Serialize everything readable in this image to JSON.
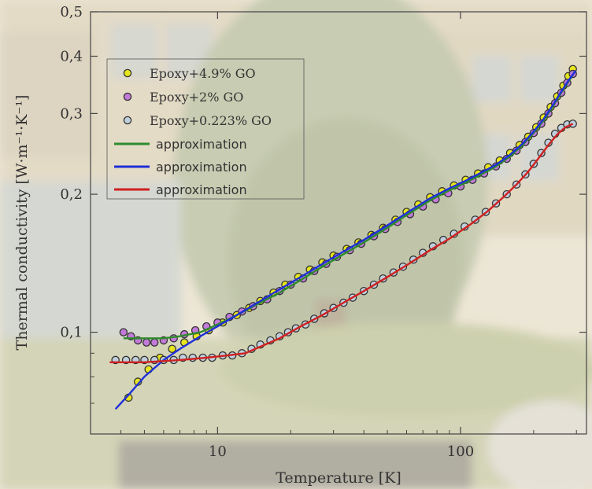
{
  "chart_data": {
    "type": "scatter",
    "xlabel": "Temperature [K]",
    "ylabel": "Thermal conductivity [W·m⁻¹·K⁻¹]",
    "x_scale": "log",
    "y_scale": "log",
    "xlim": [
      3.0,
      330
    ],
    "ylim": [
      0.06,
      0.5
    ],
    "grid": false,
    "legend_position": "top-left",
    "x_tick_labels": [
      "10",
      "100"
    ],
    "y_tick_labels": [
      "0,1",
      "0,2",
      "0,3",
      "0,4",
      "0,5"
    ],
    "series": [
      {
        "name": "Epoxy+4.9% GO",
        "marker_color": "#e7e51e",
        "points": [
          [
            4.3,
            0.072
          ],
          [
            4.7,
            0.078
          ],
          [
            5.2,
            0.083
          ],
          [
            5.8,
            0.088
          ],
          [
            6.5,
            0.092
          ],
          [
            7.3,
            0.095
          ],
          [
            8.2,
            0.098
          ],
          [
            9.2,
            0.101
          ],
          [
            10.5,
            0.105
          ],
          [
            12,
            0.109
          ],
          [
            13.5,
            0.113
          ],
          [
            15,
            0.117
          ],
          [
            17,
            0.122
          ],
          [
            19,
            0.127
          ],
          [
            21.5,
            0.132
          ],
          [
            24,
            0.137
          ],
          [
            27,
            0.142
          ],
          [
            30,
            0.147
          ],
          [
            34,
            0.152
          ],
          [
            38,
            0.157
          ],
          [
            43,
            0.163
          ],
          [
            48,
            0.169
          ],
          [
            54,
            0.176
          ],
          [
            60,
            0.183
          ],
          [
            67,
            0.19
          ],
          [
            75,
            0.197
          ],
          [
            84,
            0.203
          ],
          [
            94,
            0.209
          ],
          [
            105,
            0.215
          ],
          [
            118,
            0.222
          ],
          [
            130,
            0.229
          ],
          [
            145,
            0.237
          ],
          [
            160,
            0.246
          ],
          [
            175,
            0.256
          ],
          [
            190,
            0.267
          ],
          [
            205,
            0.28
          ],
          [
            220,
            0.294
          ],
          [
            235,
            0.31
          ],
          [
            250,
            0.327
          ],
          [
            265,
            0.345
          ],
          [
            278,
            0.362
          ],
          [
            290,
            0.375
          ]
        ]
      },
      {
        "name": "Epoxy+2% GO",
        "marker_color": "#c27ad8",
        "points": [
          [
            4.1,
            0.1
          ],
          [
            4.4,
            0.098
          ],
          [
            4.7,
            0.096
          ],
          [
            5.1,
            0.095
          ],
          [
            5.5,
            0.095
          ],
          [
            6.0,
            0.096
          ],
          [
            6.6,
            0.097
          ],
          [
            7.3,
            0.099
          ],
          [
            8.1,
            0.101
          ],
          [
            9,
            0.103
          ],
          [
            10,
            0.105
          ],
          [
            11.2,
            0.108
          ],
          [
            12.6,
            0.111
          ],
          [
            14,
            0.114
          ],
          [
            16,
            0.118
          ],
          [
            18,
            0.123
          ],
          [
            20,
            0.127
          ],
          [
            22.5,
            0.131
          ],
          [
            25,
            0.136
          ],
          [
            28,
            0.141
          ],
          [
            31,
            0.146
          ],
          [
            35,
            0.151
          ],
          [
            39,
            0.156
          ],
          [
            44,
            0.162
          ],
          [
            49,
            0.168
          ],
          [
            55,
            0.174
          ],
          [
            62,
            0.181
          ],
          [
            70,
            0.188
          ],
          [
            79,
            0.195
          ],
          [
            89,
            0.201
          ],
          [
            100,
            0.208
          ],
          [
            112,
            0.215
          ],
          [
            125,
            0.222
          ],
          [
            140,
            0.23
          ],
          [
            155,
            0.239
          ],
          [
            170,
            0.249
          ],
          [
            185,
            0.26
          ],
          [
            200,
            0.272
          ],
          [
            215,
            0.285
          ],
          [
            230,
            0.3
          ],
          [
            245,
            0.316
          ],
          [
            260,
            0.333
          ],
          [
            275,
            0.35
          ],
          [
            290,
            0.366
          ]
        ]
      },
      {
        "name": "Epoxy+0.223% GO",
        "marker_color": "#bfcfdc",
        "points": [
          [
            3.8,
            0.087
          ],
          [
            4.2,
            0.087
          ],
          [
            4.6,
            0.087
          ],
          [
            5.0,
            0.087
          ],
          [
            5.5,
            0.087
          ],
          [
            6.0,
            0.087
          ],
          [
            6.6,
            0.087
          ],
          [
            7.2,
            0.088
          ],
          [
            7.9,
            0.088
          ],
          [
            8.7,
            0.088
          ],
          [
            9.5,
            0.088
          ],
          [
            10.5,
            0.089
          ],
          [
            11.5,
            0.089
          ],
          [
            12.6,
            0.09
          ],
          [
            13.8,
            0.092
          ],
          [
            15,
            0.094
          ],
          [
            16.5,
            0.096
          ],
          [
            18,
            0.098
          ],
          [
            19.5,
            0.1
          ],
          [
            21,
            0.102
          ],
          [
            23,
            0.104
          ],
          [
            25,
            0.107
          ],
          [
            27.5,
            0.11
          ],
          [
            30,
            0.113
          ],
          [
            33,
            0.116
          ],
          [
            36,
            0.119
          ],
          [
            40,
            0.123
          ],
          [
            44,
            0.127
          ],
          [
            48,
            0.131
          ],
          [
            53,
            0.135
          ],
          [
            58,
            0.139
          ],
          [
            64,
            0.144
          ],
          [
            70,
            0.149
          ],
          [
            77,
            0.154
          ],
          [
            85,
            0.159
          ],
          [
            94,
            0.164
          ],
          [
            104,
            0.17
          ],
          [
            115,
            0.176
          ],
          [
            127,
            0.183
          ],
          [
            140,
            0.191
          ],
          [
            155,
            0.2
          ],
          [
            170,
            0.21
          ],
          [
            185,
            0.221
          ],
          [
            200,
            0.233
          ],
          [
            215,
            0.246
          ],
          [
            230,
            0.259
          ],
          [
            245,
            0.271
          ],
          [
            260,
            0.279
          ],
          [
            275,
            0.284
          ],
          [
            290,
            0.285
          ]
        ]
      }
    ],
    "fit_lines": [
      {
        "name": "approximation",
        "color": "#2e8b2e",
        "points": [
          [
            4.1,
            0.097
          ],
          [
            5,
            0.097
          ],
          [
            6,
            0.097
          ],
          [
            7,
            0.098
          ],
          [
            8.5,
            0.1
          ],
          [
            10,
            0.104
          ],
          [
            12,
            0.109
          ],
          [
            15,
            0.116
          ],
          [
            18,
            0.122
          ],
          [
            22,
            0.13
          ],
          [
            27,
            0.139
          ],
          [
            33,
            0.148
          ],
          [
            40,
            0.157
          ],
          [
            50,
            0.169
          ],
          [
            60,
            0.18
          ],
          [
            75,
            0.194
          ],
          [
            90,
            0.204
          ],
          [
            105,
            0.212
          ],
          [
            120,
            0.22
          ],
          [
            140,
            0.23
          ],
          [
            160,
            0.242
          ],
          [
            180,
            0.256
          ],
          [
            200,
            0.272
          ],
          [
            220,
            0.29
          ],
          [
            240,
            0.311
          ],
          [
            260,
            0.333
          ],
          [
            280,
            0.354
          ],
          [
            295,
            0.37
          ]
        ]
      },
      {
        "name": "approximation",
        "color": "#1f2fd8",
        "points": [
          [
            3.8,
            0.068
          ],
          [
            4.3,
            0.073
          ],
          [
            5,
            0.08
          ],
          [
            6,
            0.087
          ],
          [
            7,
            0.092
          ],
          [
            8.5,
            0.098
          ],
          [
            10,
            0.103
          ],
          [
            12,
            0.109
          ],
          [
            15,
            0.117
          ],
          [
            18,
            0.124
          ],
          [
            22,
            0.132
          ],
          [
            27,
            0.141
          ],
          [
            33,
            0.15
          ],
          [
            40,
            0.159
          ],
          [
            50,
            0.171
          ],
          [
            60,
            0.182
          ],
          [
            75,
            0.196
          ],
          [
            90,
            0.206
          ],
          [
            105,
            0.214
          ],
          [
            120,
            0.222
          ],
          [
            140,
            0.232
          ],
          [
            160,
            0.244
          ],
          [
            180,
            0.258
          ],
          [
            200,
            0.274
          ],
          [
            220,
            0.292
          ],
          [
            240,
            0.313
          ],
          [
            260,
            0.335
          ],
          [
            280,
            0.356
          ],
          [
            298,
            0.372
          ]
        ]
      },
      {
        "name": "approximation",
        "color": "#d02020",
        "points": [
          [
            3.6,
            0.086
          ],
          [
            5,
            0.086
          ],
          [
            7,
            0.087
          ],
          [
            9,
            0.088
          ],
          [
            11,
            0.089
          ],
          [
            13,
            0.09
          ],
          [
            15,
            0.093
          ],
          [
            18,
            0.097
          ],
          [
            22,
            0.103
          ],
          [
            27,
            0.109
          ],
          [
            33,
            0.116
          ],
          [
            40,
            0.123
          ],
          [
            50,
            0.132
          ],
          [
            60,
            0.14
          ],
          [
            75,
            0.151
          ],
          [
            90,
            0.16
          ],
          [
            110,
            0.172
          ],
          [
            130,
            0.184
          ],
          [
            150,
            0.197
          ],
          [
            170,
            0.21
          ],
          [
            190,
            0.224
          ],
          [
            210,
            0.24
          ],
          [
            230,
            0.256
          ],
          [
            250,
            0.27
          ],
          [
            270,
            0.28
          ],
          [
            290,
            0.285
          ]
        ]
      }
    ]
  }
}
